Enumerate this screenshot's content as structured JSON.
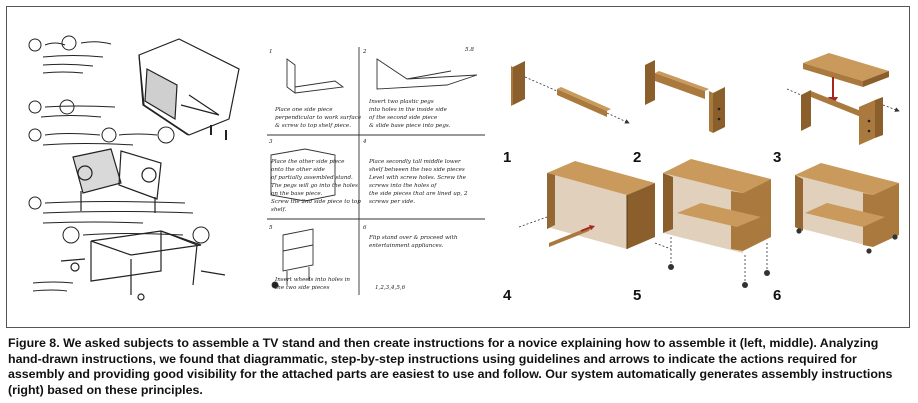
{
  "figure": {
    "label": "Figure 8.",
    "caption": "We asked subjects to assemble a TV stand and then create instructions for a novice explaining how to assemble it (left, middle). Analyzing hand-drawn instructions, we found that diagrammatic, step-by-step instructions using guidelines and arrows to indicate the actions required for assembly and providing good visibility for the attached parts are easiest to use and follow. Our system automatically generates assembly instructions (right) based on these principles."
  },
  "middle_panel": {
    "page_mark": "5.8",
    "steps": [
      {
        "num": "1",
        "text_lines": [
          "Place one side piece",
          "perpendicular to work surface",
          "& screw to top shelf piece."
        ]
      },
      {
        "num": "2",
        "text_lines": [
          "Insert two plastic pegs",
          "into holes in the inside side",
          "of the second side piece",
          "& slide base piece into pegs."
        ]
      },
      {
        "num": "3",
        "text_lines": [
          "Place the other side piece",
          "onto the other side",
          "of partially assembled stand.",
          "The pegs will go into the holes",
          "on the base piece.",
          "Screw the 2nd side piece to top",
          "shelf."
        ]
      },
      {
        "num": "4",
        "text_lines": [
          "Place secondly tall middle lower",
          "shelf between the two side pieces",
          "Level with screw holes. Screw the",
          "screws into the holes of",
          "the side pieces that are lined up, 2",
          "screws per side."
        ]
      },
      {
        "num": "5",
        "text_lines": [
          "Insert wheels into holes in",
          "the two side pieces"
        ]
      },
      {
        "num": "6",
        "text_lines": [
          "Flip stand over & proceed with",
          "entertainment appliances."
        ]
      }
    ],
    "footer_marks": "1,2,3,4,5,6"
  },
  "right_panel": {
    "steps": [
      "1",
      "2",
      "3",
      "4",
      "5",
      "6"
    ],
    "colors": {
      "wood_front": "#a9793e",
      "wood_top": "#c99a5b",
      "wood_side": "#8a5f2c",
      "arrow": "#a3281f",
      "guide": "#333333"
    }
  }
}
